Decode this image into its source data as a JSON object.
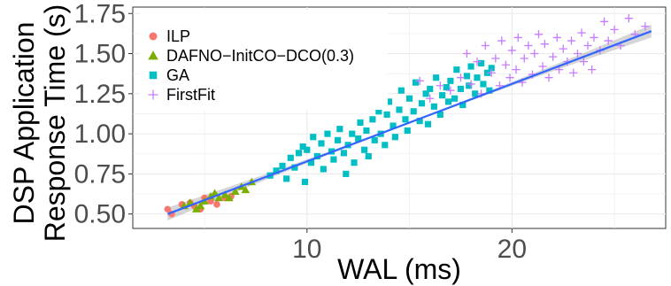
{
  "chart_data": {
    "type": "scatter",
    "xlabel": "WAL (ms)",
    "ylabel": [
      "DSP Application",
      "Response Time (s)"
    ],
    "xlim": [
      1.5,
      27.5
    ],
    "ylim": [
      0.41,
      1.79
    ],
    "x_ticks": [
      10,
      20
    ],
    "x_tick_labels": [
      "10",
      "20"
    ],
    "y_ticks": [
      0.5,
      0.75,
      1.0,
      1.25,
      1.5,
      1.75
    ],
    "y_tick_labels": [
      "0.50",
      "0.75",
      "1.00",
      "1.25",
      "1.50",
      "1.75"
    ],
    "grid": true,
    "legend_position": "top-left",
    "trend_line": {
      "x": [
        3.2,
        26.8
      ],
      "y": [
        0.5,
        1.64
      ],
      "color": "#3366ff",
      "band_color": "#999999"
    },
    "series": [
      {
        "name": "ILP",
        "marker": "circle",
        "color": "#f8766d",
        "points": [
          [
            3.2,
            0.53
          ],
          [
            3.4,
            0.5
          ],
          [
            3.9,
            0.56
          ],
          [
            4.3,
            0.57
          ],
          [
            4.5,
            0.55
          ],
          [
            4.8,
            0.53
          ],
          [
            5.0,
            0.6
          ],
          [
            5.3,
            0.58
          ],
          [
            5.6,
            0.56
          ],
          [
            6.0,
            0.6
          ],
          [
            6.3,
            0.61
          ]
        ]
      },
      {
        "name": "DAFNO−InitCO−DCO(0.3)",
        "marker": "triangle",
        "color": "#7cae00",
        "points": [
          [
            4.0,
            0.55
          ],
          [
            4.3,
            0.57
          ],
          [
            4.6,
            0.53
          ],
          [
            4.8,
            0.55
          ],
          [
            5.0,
            0.58
          ],
          [
            5.3,
            0.61
          ],
          [
            5.5,
            0.63
          ],
          [
            5.7,
            0.6
          ],
          [
            6.0,
            0.62
          ],
          [
            6.2,
            0.6
          ],
          [
            6.5,
            0.64
          ],
          [
            6.8,
            0.67
          ],
          [
            7.0,
            0.65
          ],
          [
            7.3,
            0.7
          ]
        ]
      },
      {
        "name": "GA",
        "marker": "square",
        "color": "#00bfc4",
        "points": [
          [
            8.2,
            0.74
          ],
          [
            8.5,
            0.77
          ],
          [
            8.8,
            0.8
          ],
          [
            9.0,
            0.72
          ],
          [
            9.2,
            0.85
          ],
          [
            9.4,
            0.79
          ],
          [
            9.6,
            0.88
          ],
          [
            9.8,
            0.92
          ],
          [
            9.9,
            0.7
          ],
          [
            10.0,
            0.9
          ],
          [
            10.2,
            0.82
          ],
          [
            10.3,
            0.98
          ],
          [
            10.5,
            0.86
          ],
          [
            10.7,
            0.94
          ],
          [
            10.8,
            0.78
          ],
          [
            11.0,
            1.0
          ],
          [
            11.2,
            0.89
          ],
          [
            11.3,
            0.84
          ],
          [
            11.5,
            0.96
          ],
          [
            11.6,
            1.03
          ],
          [
            11.8,
            0.88
          ],
          [
            11.9,
            0.75
          ],
          [
            12.0,
            0.93
          ],
          [
            12.2,
            1.0
          ],
          [
            12.3,
            0.82
          ],
          [
            12.5,
            0.97
          ],
          [
            12.6,
            1.07
          ],
          [
            12.8,
            0.9
          ],
          [
            12.9,
            1.02
          ],
          [
            13.0,
            0.86
          ],
          [
            13.2,
            1.09
          ],
          [
            13.3,
            0.96
          ],
          [
            13.5,
            1.14
          ],
          [
            13.6,
            1.0
          ],
          [
            13.8,
            0.93
          ],
          [
            13.9,
            1.12
          ],
          [
            14.0,
            1.2
          ],
          [
            14.2,
            1.05
          ],
          [
            14.3,
            0.98
          ],
          [
            14.5,
            1.15
          ],
          [
            14.6,
            1.27
          ],
          [
            14.8,
            1.09
          ],
          [
            14.9,
            1.02
          ],
          [
            15.0,
            1.22
          ],
          [
            15.2,
            1.14
          ],
          [
            15.3,
            1.32
          ],
          [
            15.5,
            1.08
          ],
          [
            15.6,
            1.19
          ],
          [
            15.8,
            1.25
          ],
          [
            15.9,
            1.06
          ],
          [
            16.0,
            1.28
          ],
          [
            16.2,
            1.17
          ],
          [
            16.3,
            1.35
          ],
          [
            16.5,
            1.12
          ],
          [
            16.6,
            1.24
          ],
          [
            16.8,
            1.29
          ],
          [
            16.9,
            1.2
          ],
          [
            17.0,
            1.33
          ],
          [
            17.2,
            1.22
          ],
          [
            17.3,
            1.4
          ],
          [
            17.5,
            1.28
          ],
          [
            17.6,
            1.18
          ],
          [
            17.8,
            1.36
          ],
          [
            17.9,
            1.3
          ],
          [
            18.0,
            1.42
          ],
          [
            18.2,
            1.25
          ],
          [
            18.3,
            1.35
          ],
          [
            18.5,
            1.44
          ],
          [
            18.6,
            1.31
          ],
          [
            18.8,
            1.38
          ],
          [
            18.9,
            1.27
          ],
          [
            19.0,
            1.41
          ]
        ]
      },
      {
        "name": "FirstFit",
        "marker": "plus",
        "color": "#c77cff",
        "points": [
          [
            15.5,
            1.33
          ],
          [
            16.0,
            1.22
          ],
          [
            16.5,
            1.3
          ],
          [
            17.0,
            1.27
          ],
          [
            17.5,
            1.35
          ],
          [
            17.8,
            1.5
          ],
          [
            18.0,
            1.31
          ],
          [
            18.3,
            1.45
          ],
          [
            18.5,
            1.25
          ],
          [
            18.7,
            1.55
          ],
          [
            19.0,
            1.38
          ],
          [
            19.2,
            1.47
          ],
          [
            19.4,
            1.3
          ],
          [
            19.5,
            1.58
          ],
          [
            19.7,
            1.43
          ],
          [
            19.9,
            1.35
          ],
          [
            20.0,
            1.52
          ],
          [
            20.2,
            1.4
          ],
          [
            20.3,
            1.6
          ],
          [
            20.5,
            1.32
          ],
          [
            20.6,
            1.47
          ],
          [
            20.8,
            1.55
          ],
          [
            21.0,
            1.37
          ],
          [
            21.1,
            1.5
          ],
          [
            21.3,
            1.62
          ],
          [
            21.5,
            1.42
          ],
          [
            21.6,
            1.56
          ],
          [
            21.8,
            1.35
          ],
          [
            22.0,
            1.48
          ],
          [
            22.2,
            1.6
          ],
          [
            22.3,
            1.4
          ],
          [
            22.5,
            1.53
          ],
          [
            22.7,
            1.45
          ],
          [
            22.9,
            1.58
          ],
          [
            23.0,
            1.38
          ],
          [
            23.2,
            1.5
          ],
          [
            23.4,
            1.63
          ],
          [
            23.5,
            1.45
          ],
          [
            23.7,
            1.55
          ],
          [
            23.9,
            1.4
          ],
          [
            24.0,
            1.6
          ],
          [
            24.3,
            1.52
          ],
          [
            24.5,
            1.7
          ],
          [
            24.7,
            1.58
          ],
          [
            25.0,
            1.65
          ],
          [
            25.3,
            1.55
          ],
          [
            25.7,
            1.72
          ],
          [
            26.0,
            1.62
          ],
          [
            26.5,
            1.67
          ]
        ]
      }
    ]
  }
}
